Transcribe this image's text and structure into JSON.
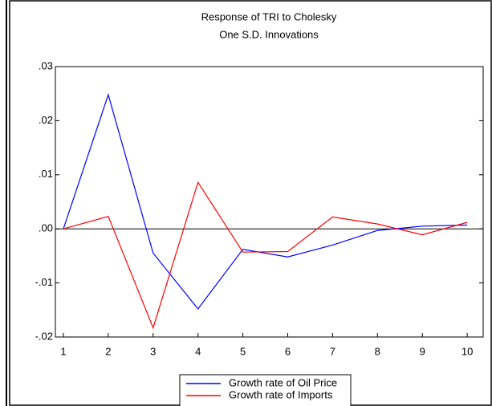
{
  "chart_data": {
    "type": "line",
    "title": "Response of TRI to Cholesky",
    "subtitle": "One S.D. Innovations",
    "categories": [
      1,
      2,
      3,
      4,
      5,
      6,
      7,
      8,
      9,
      10
    ],
    "series": [
      {
        "name": "Growth rate of Oil Price",
        "color": "#0000ff",
        "values": [
          0,
          0.0248,
          -0.0045,
          -0.0148,
          -0.0038,
          -0.0052,
          -0.003,
          -0.0003,
          0.0005,
          0.0007
        ]
      },
      {
        "name": "Growth rate of Imports",
        "color": "#ff0000",
        "values": [
          0,
          0.0023,
          -0.0183,
          0.0086,
          -0.0043,
          -0.0042,
          0.0022,
          0.0009,
          -0.0011,
          0.0012
        ]
      }
    ],
    "ylim": [
      -0.02,
      0.03
    ],
    "yticks": [
      {
        "value": -0.02,
        "label": "-.02"
      },
      {
        "value": -0.01,
        "label": "-.01"
      },
      {
        "value": 0,
        "label": ".00"
      },
      {
        "value": 0.01,
        "label": ".01"
      },
      {
        "value": 0.02,
        "label": ".02"
      },
      {
        "value": 0.03,
        "label": ".03"
      }
    ]
  }
}
